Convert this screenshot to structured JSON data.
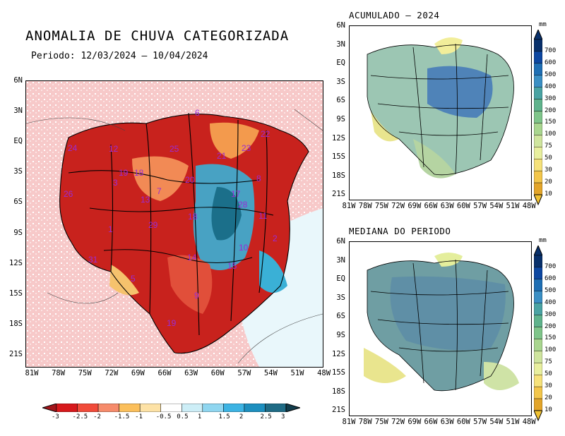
{
  "main": {
    "title": "ANOMALIA DE CHUVA CATEGORIZADA",
    "period": "Periodo: 12/03/2024 — 10/04/2024",
    "y_ticks": [
      "6N",
      "3N",
      "EQ",
      "3S",
      "6S",
      "9S",
      "12S",
      "15S",
      "18S",
      "21S"
    ],
    "x_ticks": [
      "81W",
      "78W",
      "75W",
      "72W",
      "69W",
      "66W",
      "63W",
      "60W",
      "57W",
      "54W",
      "51W",
      "48W"
    ],
    "colorbar_labels": [
      "-3",
      "-2.5",
      "-2",
      "-1.5",
      "-1",
      "-0.5",
      "0.5",
      "1",
      "1.5",
      "2",
      "2.5",
      "3"
    ],
    "colorbar_colors": [
      "#d7191c",
      "#f14b3a",
      "#f68b6b",
      "#fbbf5b",
      "#fde2a6",
      "#ffffff",
      "#cdeef7",
      "#8fd6f0",
      "#3cb3e3",
      "#1d8fbf",
      "#1f6b85"
    ],
    "basins": [
      "6",
      "24",
      "12",
      "25",
      "21",
      "23",
      "22",
      "18",
      "19",
      "3",
      "20",
      "7",
      "13",
      "8",
      "26",
      "17",
      "28",
      "1",
      "11",
      "18",
      "29",
      "2",
      "10",
      "14",
      "31",
      "15",
      "5",
      "9",
      "19"
    ]
  },
  "accum": {
    "title": "ACUMULADO — 2024",
    "unit": "mm",
    "y_ticks": [
      "6N",
      "3N",
      "EQ",
      "3S",
      "6S",
      "9S",
      "12S",
      "15S",
      "18S",
      "21S"
    ],
    "x_ticks": [
      "81W",
      "78W",
      "75W",
      "72W",
      "69W",
      "66W",
      "63W",
      "60W",
      "57W",
      "54W",
      "51W",
      "48W"
    ],
    "scale_labels": [
      "700",
      "600",
      "500",
      "400",
      "300",
      "200",
      "150",
      "100",
      "75",
      "50",
      "30",
      "20",
      "10"
    ]
  },
  "median": {
    "title": "MEDIANA DO PERIODO",
    "unit": "mm",
    "y_ticks": [
      "6N",
      "3N",
      "EQ",
      "3S",
      "6S",
      "9S",
      "12S",
      "15S",
      "18S",
      "21S"
    ],
    "x_ticks": [
      "81W",
      "78W",
      "75W",
      "72W",
      "69W",
      "66W",
      "63W",
      "60W",
      "57W",
      "54W",
      "51W",
      "48W"
    ],
    "scale_labels": [
      "700",
      "600",
      "500",
      "400",
      "300",
      "200",
      "150",
      "100",
      "75",
      "50",
      "30",
      "20",
      "10"
    ]
  }
}
